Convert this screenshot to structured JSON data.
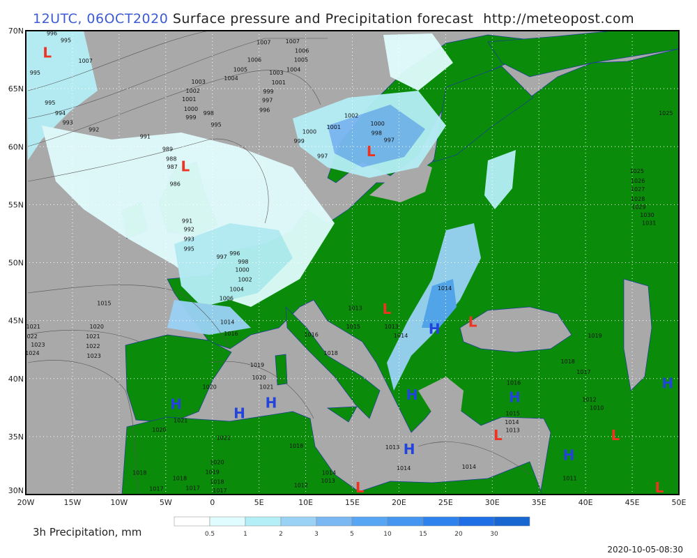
{
  "title": {
    "run": "12UTC, 06OCT2020",
    "product": "Surface pressure and Precipitation forecast",
    "site": "http://meteopost.com"
  },
  "map": {
    "lon_range": [
      -20,
      50
    ],
    "lat_range": [
      30,
      70
    ],
    "lon_ticks": [
      "20W",
      "15W",
      "10W",
      "5W",
      "0",
      "5E",
      "10E",
      "15E",
      "20E",
      "25E",
      "30E",
      "35E",
      "40E",
      "45E",
      "50E"
    ],
    "lat_ticks": [
      "30N",
      "35N",
      "40N",
      "45N",
      "50N",
      "55N",
      "60N",
      "65N",
      "70N"
    ],
    "colors": {
      "sea": "#a9a9a9",
      "land": "#0a8c0a",
      "high": "#2244dd",
      "low": "#ee3322",
      "isobar": "#555555",
      "grid": "#ffffff"
    },
    "pressure_centers": [
      {
        "type": "L",
        "lon": -17.7,
        "lat": 68.1
      },
      {
        "type": "L",
        "lon": -2.9,
        "lat": 58.3
      },
      {
        "type": "L",
        "lon": 17.0,
        "lat": 59.6
      },
      {
        "type": "L",
        "lon": 18.7,
        "lat": 46.0
      },
      {
        "type": "L",
        "lon": 27.9,
        "lat": 44.9
      },
      {
        "type": "H",
        "lon": 23.8,
        "lat": 44.3
      },
      {
        "type": "H",
        "lon": -3.9,
        "lat": 37.8
      },
      {
        "type": "H",
        "lon": 2.9,
        "lat": 37.0
      },
      {
        "type": "H",
        "lon": 6.3,
        "lat": 37.9
      },
      {
        "type": "H",
        "lon": 21.4,
        "lat": 38.6
      },
      {
        "type": "H",
        "lon": 32.4,
        "lat": 38.4
      },
      {
        "type": "H",
        "lon": 21.1,
        "lat": 33.9
      },
      {
        "type": "H",
        "lon": 38.2,
        "lat": 33.4
      },
      {
        "type": "H",
        "lon": 48.8,
        "lat": 39.6
      },
      {
        "type": "L",
        "lon": 30.6,
        "lat": 35.1
      },
      {
        "type": "L",
        "lon": 43.2,
        "lat": 35.1
      },
      {
        "type": "L",
        "lon": 15.8,
        "lat": 30.6
      },
      {
        "type": "L",
        "lon": 47.9,
        "lat": 30.6
      }
    ],
    "isobar_labels": [
      {
        "v": "996",
        "lon": -17.2,
        "lat": 69.8
      },
      {
        "v": "995",
        "lon": -17.5,
        "lat": 69.2
      },
      {
        "v": "995",
        "lon": -19,
        "lat": 66.4
      },
      {
        "v": "1007",
        "lon": -13.6,
        "lat": 67.4
      },
      {
        "v": "1007",
        "lon": 5.5,
        "lat": 69.0
      },
      {
        "v": "1007",
        "lon": 8.6,
        "lat": 69.1
      },
      {
        "v": "1006",
        "lon": 4.5,
        "lat": 67.5
      },
      {
        "v": "1006",
        "lon": 9.6,
        "lat": 68.3
      },
      {
        "v": "1005",
        "lon": 3.0,
        "lat": 66.9
      },
      {
        "v": "1005",
        "lon": 9.5,
        "lat": 67.5
      },
      {
        "v": "1004",
        "lon": 2.0,
        "lat": 66.4
      },
      {
        "v": "1004",
        "lon": 8.7,
        "lat": 66.9
      },
      {
        "v": "1003",
        "lon": -1.5,
        "lat": 65.6
      },
      {
        "v": "1003",
        "lon": 7.3,
        "lat": 66.4
      },
      {
        "v": "1002",
        "lon": -2.1,
        "lat": 65.3
      },
      {
        "v": "1001",
        "lon": -2.5,
        "lat": 64.6
      },
      {
        "v": "1001",
        "lon": 7.1,
        "lat": 65.8
      },
      {
        "v": "1000",
        "lon": -2.3,
        "lat": 64.0
      },
      {
        "v": "999",
        "lon": -2.3,
        "lat": 63.5
      },
      {
        "v": "999",
        "lon": 6.0,
        "lat": 65.0
      },
      {
        "v": "998",
        "lon": -2.2,
        "lat": 62.9
      },
      {
        "v": "997",
        "lon": 5.9,
        "lat": 64.5
      },
      {
        "v": "996",
        "lon": 5.6,
        "lat": 63.9
      },
      {
        "v": "995",
        "lon": -17.4,
        "lat": 63.8
      },
      {
        "v": "994",
        "lon": -16.3,
        "lat": 62.9
      },
      {
        "v": "993",
        "lon": -15.5,
        "lat": 62.1
      },
      {
        "v": "992",
        "lon": -12.7,
        "lat": 61.5
      },
      {
        "v": "995",
        "lon": 0.4,
        "lat": 61.9
      },
      {
        "v": "991",
        "lon": -7.2,
        "lat": 60.9
      },
      {
        "v": "989",
        "lon": -4.8,
        "lat": 59.8
      },
      {
        "v": "988",
        "lon": -4.4,
        "lat": 59.2
      },
      {
        "v": "987",
        "lon": -4.0,
        "lat": 58.5
      },
      {
        "v": "986",
        "lon": -4.0,
        "lat": 56.8
      },
      {
        "v": "991",
        "lon": -2.7,
        "lat": 53.6
      },
      {
        "v": "992",
        "lon": -2.5,
        "lat": 52.9
      },
      {
        "v": "993",
        "lon": -2.5,
        "lat": 52.3
      },
      {
        "v": "995",
        "lon": -2.5,
        "lat": 51.2
      },
      {
        "v": "997",
        "lon": 1.0,
        "lat": 50.5
      },
      {
        "v": "996",
        "lon": 2.4,
        "lat": 50.8
      },
      {
        "v": "998",
        "lon": 3.3,
        "lat": 50.1
      },
      {
        "v": "1000",
        "lon": 3.2,
        "lat": 49.4
      },
      {
        "v": "1002",
        "lon": 3.5,
        "lat": 48.8
      },
      {
        "v": "1004",
        "lon": 2.6,
        "lat": 48.2
      },
      {
        "v": "1006",
        "lon": 1.5,
        "lat": 47.4
      },
      {
        "v": "1002",
        "lon": 14.9,
        "lat": 62.7
      },
      {
        "v": "1001",
        "lon": 13.0,
        "lat": 61.7
      },
      {
        "v": "1000",
        "lon": 10.4,
        "lat": 61.3
      },
      {
        "v": "1000",
        "lon": 17.7,
        "lat": 62.0
      },
      {
        "v": "998",
        "lon": 17.6,
        "lat": 61.2
      },
      {
        "v": "997",
        "lon": 17.6,
        "lat": 60.6
      },
      {
        "v": "999",
        "lon": 9.3,
        "lat": 60.5
      },
      {
        "v": "997",
        "lon": 11.8,
        "lat": 59.2
      },
      {
        "v": "1015",
        "lon": -11.6,
        "lat": 46.5
      },
      {
        "v": "1021",
        "lon": -19.2,
        "lat": 44.5
      },
      {
        "v": "1022",
        "lon": -19.5,
        "lat": 43.9
      },
      {
        "v": "1023",
        "lon": -18.7,
        "lat": 43.4
      },
      {
        "v": "1024",
        "lon": -19.3,
        "lat": 42.7
      },
      {
        "v": "1020",
        "lon": -12.4,
        "lat": 44.5
      },
      {
        "v": "1021",
        "lon": -12.8,
        "lat": 43.9
      },
      {
        "v": "1022",
        "lon": -12.8,
        "lat": 43.3
      },
      {
        "v": "1023",
        "lon": -12.7,
        "lat": 42.7
      },
      {
        "v": "1014",
        "lon": 1.6,
        "lat": 44.9
      },
      {
        "v": "1016",
        "lon": 2.0,
        "lat": 43.9
      },
      {
        "v": "1019",
        "lon": 4.8,
        "lat": 41.2
      },
      {
        "v": "1020",
        "lon": 5.0,
        "lat": 40.1
      },
      {
        "v": "1020",
        "lon": -0.3,
        "lat": 39.3
      },
      {
        "v": "1021",
        "lon": 5.8,
        "lat": 38.8
      },
      {
        "v": "1021",
        "lon": -3.4,
        "lat": 36.4
      },
      {
        "v": "1020",
        "lon": -5.7,
        "lat": 35.6
      },
      {
        "v": "1021",
        "lon": 1.2,
        "lat": 34.9
      },
      {
        "v": "1020",
        "lon": 0.5,
        "lat": 32.8
      },
      {
        "v": "1019",
        "lon": 0.0,
        "lat": 32.2
      },
      {
        "v": "1018",
        "lon": 0.5,
        "lat": 31.6
      },
      {
        "v": "1017",
        "lon": 0.8,
        "lat": 30.6
      },
      {
        "v": "1018",
        "lon": -7.8,
        "lat": 31.9
      },
      {
        "v": "1018",
        "lon": -3.5,
        "lat": 31.4
      },
      {
        "v": "1017",
        "lon": -2.1,
        "lat": 30.8
      },
      {
        "v": "1017",
        "lon": -6.0,
        "lat": 30.5
      },
      {
        "v": "1014",
        "lon": 24.9,
        "lat": 47.8
      },
      {
        "v": "1013",
        "lon": 19.2,
        "lat": 44.5
      },
      {
        "v": "1014",
        "lon": 20.2,
        "lat": 43.7
      },
      {
        "v": "1013",
        "lon": 15.3,
        "lat": 46.1
      },
      {
        "v": "1015",
        "lon": 15.1,
        "lat": 44.5
      },
      {
        "v": "1016",
        "lon": 10.6,
        "lat": 43.8
      },
      {
        "v": "1018",
        "lon": 12.7,
        "lat": 42.2
      },
      {
        "v": "1019",
        "lon": 41.0,
        "lat": 43.7
      },
      {
        "v": "1018",
        "lon": 38.1,
        "lat": 41.5
      },
      {
        "v": "1017",
        "lon": 39.8,
        "lat": 40.6
      },
      {
        "v": "1016",
        "lon": 32.3,
        "lat": 39.4
      },
      {
        "v": "1015",
        "lon": 32.2,
        "lat": 37.0
      },
      {
        "v": "1014",
        "lon": 32.1,
        "lat": 36.5
      },
      {
        "v": "1013",
        "lon": 31.9,
        "lat": 35.8
      },
      {
        "v": "1012",
        "lon": 40.4,
        "lat": 38.2
      },
      {
        "v": "1010",
        "lon": 41.2,
        "lat": 37.5
      },
      {
        "v": "1011",
        "lon": 38.3,
        "lat": 31.4
      },
      {
        "v": "1014",
        "lon": 27.5,
        "lat": 32.4
      },
      {
        "v": "1014",
        "lon": 20.5,
        "lat": 32.3
      },
      {
        "v": "1013",
        "lon": 20.2,
        "lat": 34.1
      },
      {
        "v": "1013",
        "lon": 12.4,
        "lat": 31.2
      },
      {
        "v": "1014",
        "lon": 12.5,
        "lat": 31.9
      },
      {
        "v": "1018",
        "lon": 9.0,
        "lat": 34.2
      },
      {
        "v": "1012",
        "lon": 9.5,
        "lat": 30.8
      },
      {
        "v": "1025",
        "lon": 48.6,
        "lat": 62.9
      },
      {
        "v": "1025",
        "lon": 45.5,
        "lat": 57.9
      },
      {
        "v": "1026",
        "lon": 45.6,
        "lat": 57.3
      },
      {
        "v": "1027",
        "lon": 45.6,
        "lat": 56.6
      },
      {
        "v": "1028",
        "lon": 45.6,
        "lat": 56.0
      },
      {
        "v": "1029",
        "lon": 45.7,
        "lat": 55.3
      },
      {
        "v": "1030",
        "lon": 46.6,
        "lat": 54.6
      },
      {
        "v": "1031",
        "lon": 46.8,
        "lat": 53.9
      }
    ]
  },
  "legend": {
    "label": "3h Precipitation, mm",
    "ticks": [
      "0.5",
      "1",
      "2",
      "3",
      "5",
      "10",
      "15",
      "20",
      "30"
    ],
    "colors": [
      "#ffffff",
      "#e0fcfe",
      "#b4eef6",
      "#9ad2f6",
      "#7ab8f4",
      "#56a6f4",
      "#4496f0",
      "#2d82ee",
      "#1e6ee6",
      "#1866d0"
    ]
  },
  "timestamp": "2020-10-05-08:30"
}
